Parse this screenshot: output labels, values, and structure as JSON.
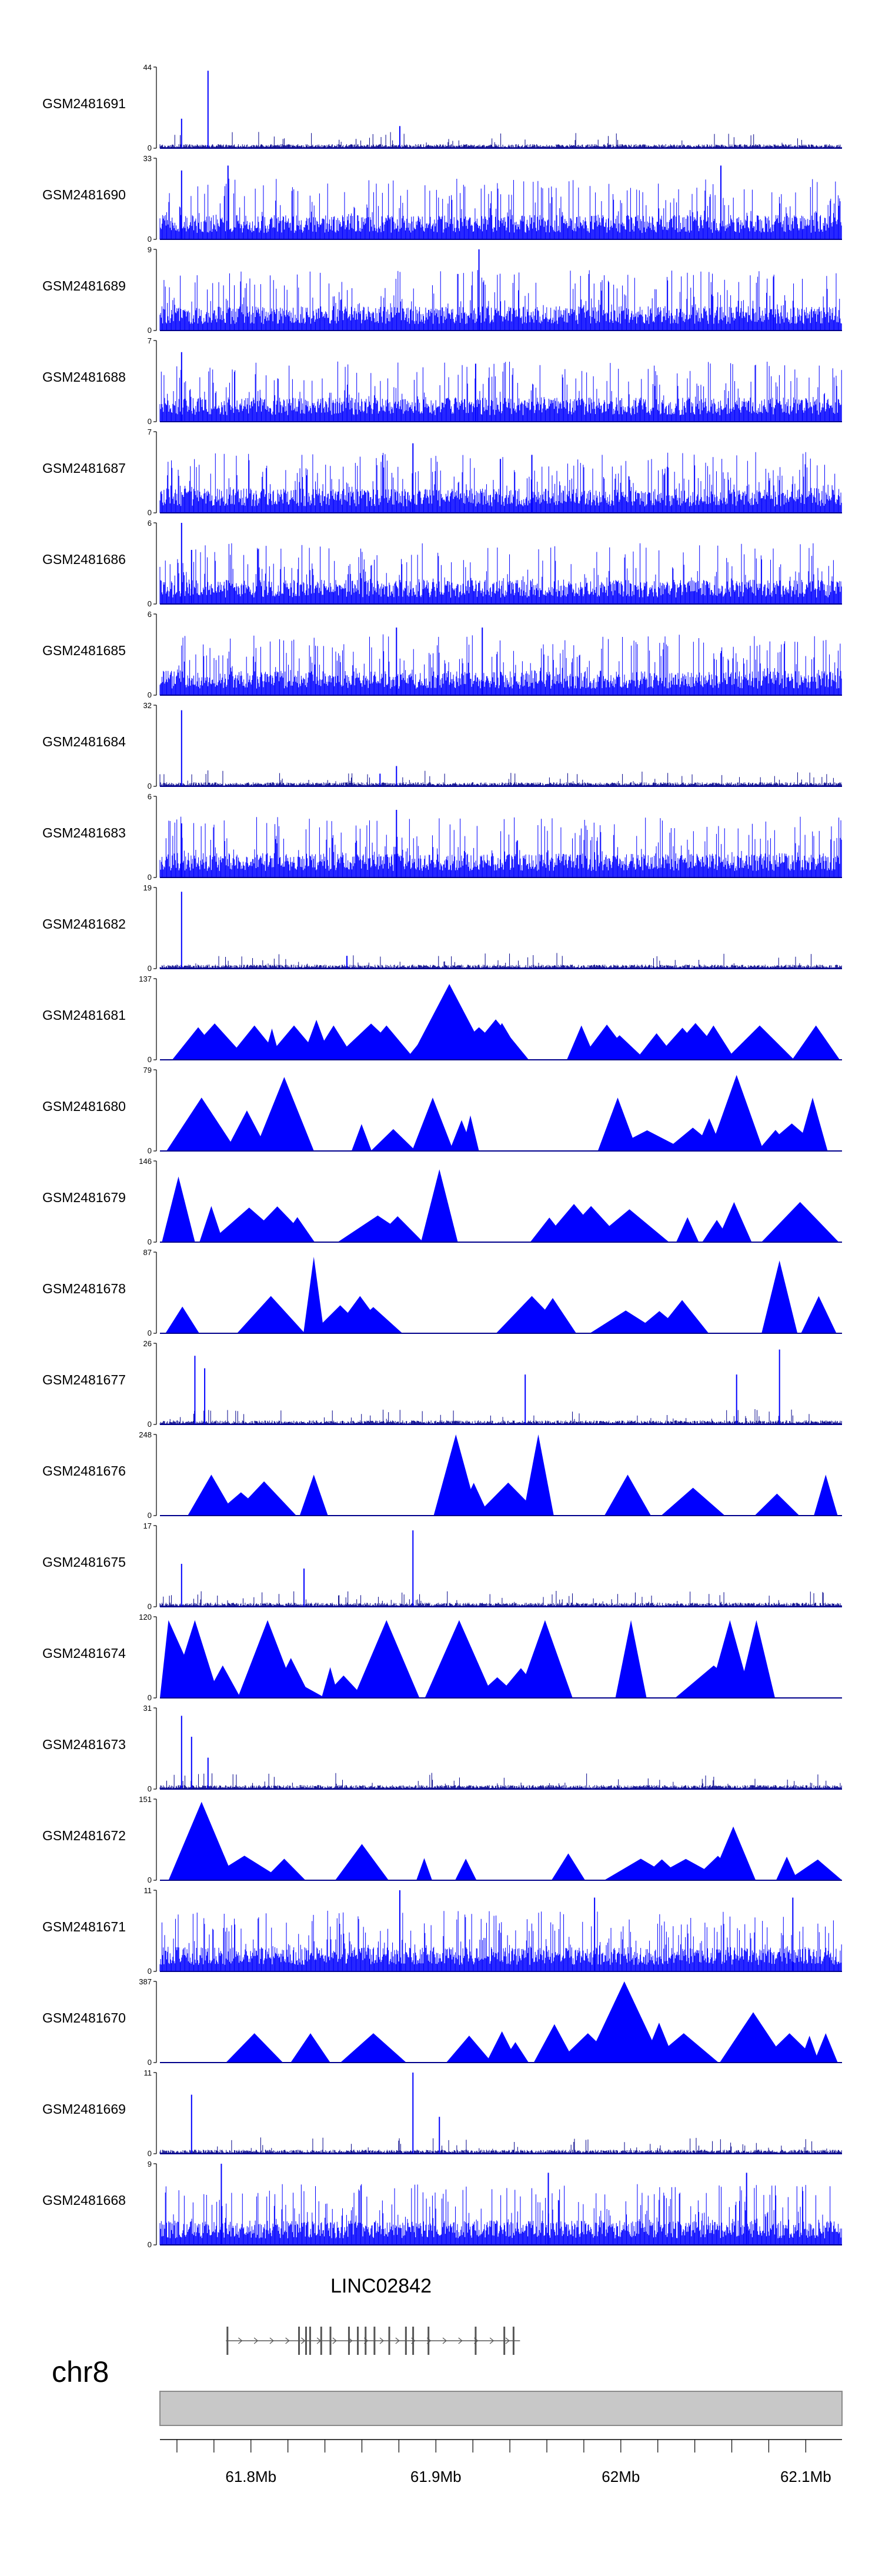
{
  "chart_data": {
    "type": "area",
    "title": "",
    "xlabel": "",
    "ylabel": "",
    "xlim": [
      61.7508,
      62.1196
    ],
    "x_unit": "Mb",
    "tracks": [
      {
        "name": "GSM2481691",
        "ymax": 44,
        "pattern": "spiky",
        "peaks": [
          [
            61.7625,
            16
          ],
          [
            61.7768,
            42
          ],
          [
            61.8805,
            12
          ]
        ]
      },
      {
        "name": "GSM2481690",
        "ymax": 33,
        "pattern": "dense",
        "peaks": [
          [
            61.7625,
            28
          ],
          [
            61.7876,
            30
          ],
          [
            62.0541,
            30
          ]
        ]
      },
      {
        "name": "GSM2481689",
        "ymax": 9,
        "pattern": "dense",
        "peaks": [
          [
            61.9233,
            9
          ],
          [
            62.0826,
            6
          ]
        ]
      },
      {
        "name": "GSM2481688",
        "ymax": 7,
        "pattern": "dense",
        "peaks": [
          [
            61.7625,
            6
          ],
          [
            61.9215,
            5
          ]
        ]
      },
      {
        "name": "GSM2481687",
        "ymax": 7,
        "pattern": "dense",
        "peaks": [
          [
            61.8876,
            6
          ],
          [
            61.9519,
            5
          ]
        ]
      },
      {
        "name": "GSM2481686",
        "ymax": 6,
        "pattern": "dense",
        "peaks": [
          [
            61.7625,
            6
          ],
          [
            61.7679,
            4
          ]
        ]
      },
      {
        "name": "GSM2481685",
        "ymax": 6,
        "pattern": "dense",
        "peaks": [
          [
            61.8787,
            5
          ],
          [
            61.9251,
            5
          ]
        ]
      },
      {
        "name": "GSM2481684",
        "ymax": 32,
        "pattern": "spiky",
        "peaks": [
          [
            61.7625,
            30
          ],
          [
            61.8787,
            8
          ],
          [
            61.8698,
            5
          ]
        ]
      },
      {
        "name": "GSM2481683",
        "ymax": 6,
        "pattern": "dense",
        "peaks": [
          [
            61.8787,
            5
          ],
          [
            61.7625,
            4
          ]
        ]
      },
      {
        "name": "GSM2481682",
        "ymax": 19,
        "pattern": "spiky",
        "peaks": [
          [
            61.7625,
            18
          ],
          [
            61.8519,
            3
          ]
        ]
      },
      {
        "name": "GSM2481681",
        "ymax": 137,
        "pattern": "tri",
        "peaks": [
          [
            61.7715,
            55
          ],
          [
            61.8019,
            58
          ],
          [
            61.8233,
            58
          ],
          [
            61.8447,
            58
          ],
          [
            61.8733,
            58
          ],
          [
            61.9001,
            64
          ],
          [
            61.9073,
            128
          ],
          [
            61.9233,
            55
          ],
          [
            61.9787,
            58
          ],
          [
            62.0501,
            58
          ],
          [
            62.0751,
            58
          ],
          [
            62.1055,
            58
          ]
        ]
      },
      {
        "name": "GSM2481680",
        "ymax": 79,
        "pattern": "tri",
        "peaks": [
          [
            61.7733,
            52
          ],
          [
            61.818,
            72
          ],
          [
            61.8983,
            52
          ],
          [
            61.9983,
            52
          ],
          [
            62.0626,
            74
          ],
          [
            62.1037,
            52
          ]
        ]
      },
      {
        "name": "GSM2481679",
        "ymax": 146,
        "pattern": "tri",
        "peaks": [
          [
            61.7608,
            118
          ],
          [
            61.7786,
            65
          ],
          [
            61.9019,
            131
          ],
          [
            61.8251,
            45
          ],
          [
            61.9839,
            65
          ],
          [
            62.0519,
            40
          ]
        ]
      },
      {
        "name": "GSM2481678",
        "ymax": 87,
        "pattern": "tri",
        "peaks": [
          [
            61.834,
            82
          ],
          [
            62.0858,
            78
          ],
          [
            61.8108,
            40
          ],
          [
            61.859,
            40
          ],
          [
            61.9519,
            40
          ]
        ]
      },
      {
        "name": "GSM2481677",
        "ymax": 26,
        "pattern": "spiky",
        "peaks": [
          [
            61.7697,
            22
          ],
          [
            61.775,
            18
          ],
          [
            61.9483,
            16
          ],
          [
            62.0858,
            24
          ],
          [
            62.0626,
            16
          ]
        ]
      },
      {
        "name": "GSM2481676",
        "ymax": 248,
        "pattern": "tri",
        "peaks": [
          [
            61.7786,
            125
          ],
          [
            61.834,
            125
          ],
          [
            61.9108,
            248
          ],
          [
            61.9554,
            248
          ],
          [
            62.0037,
            125
          ],
          [
            62.1108,
            125
          ]
        ]
      },
      {
        "name": "GSM2481675",
        "ymax": 17,
        "pattern": "spiky",
        "peaks": [
          [
            61.8876,
            16
          ],
          [
            61.7625,
            9
          ],
          [
            61.8287,
            8
          ]
        ]
      },
      {
        "name": "GSM2481674",
        "ymax": 120,
        "pattern": "tri",
        "peaks": [
          [
            61.7554,
            115
          ],
          [
            61.7697,
            115
          ],
          [
            61.809,
            115
          ],
          [
            61.8733,
            115
          ],
          [
            61.9126,
            115
          ],
          [
            61.959,
            115
          ],
          [
            62.0055,
            115
          ],
          [
            62.059,
            115
          ],
          [
            62.0733,
            115
          ]
        ]
      },
      {
        "name": "GSM2481673",
        "ymax": 31,
        "pattern": "spiky",
        "peaks": [
          [
            61.7625,
            28
          ],
          [
            61.7679,
            20
          ],
          [
            61.7768,
            12
          ]
        ]
      },
      {
        "name": "GSM2481672",
        "ymax": 151,
        "pattern": "tri",
        "peaks": [
          [
            61.7733,
            146
          ],
          [
            62.0608,
            100
          ],
          [
            61.818,
            40
          ],
          [
            61.9162,
            40
          ],
          [
            62.0108,
            40
          ]
        ]
      },
      {
        "name": "GSM2481671",
        "ymax": 11,
        "pattern": "dense",
        "peaks": [
          [
            61.8805,
            11
          ],
          [
            61.9858,
            10
          ],
          [
            62.093,
            10
          ]
        ]
      },
      {
        "name": "GSM2481670",
        "ymax": 387,
        "pattern": "tri",
        "peaks": [
          [
            61.8019,
            140
          ],
          [
            61.8322,
            140
          ],
          [
            61.8662,
            140
          ],
          [
            61.9822,
            140
          ],
          [
            62.0019,
            387
          ],
          [
            62.034,
            140
          ],
          [
            62.0716,
            240
          ],
          [
            62.0912,
            140
          ],
          [
            62.1108,
            140
          ]
        ]
      },
      {
        "name": "GSM2481669",
        "ymax": 11,
        "pattern": "spiky",
        "peaks": [
          [
            61.7679,
            8
          ],
          [
            61.8876,
            11
          ],
          [
            61.9019,
            5
          ]
        ]
      },
      {
        "name": "GSM2481668",
        "ymax": 9,
        "pattern": "dense",
        "peaks": [
          [
            61.784,
            9
          ],
          [
            61.9608,
            8
          ],
          [
            62.068,
            8
          ]
        ]
      }
    ],
    "gene": {
      "name": "LINC02842",
      "strand": "+",
      "start": 61.7865,
      "end": 61.9455,
      "exons": [
        61.7873,
        61.826,
        61.8298,
        61.832,
        61.838,
        61.843,
        61.853,
        61.8578,
        61.862,
        61.8668,
        61.8748,
        61.8838,
        61.8877,
        61.896,
        61.9215,
        61.937,
        61.942
      ]
    },
    "chromosome": "chr8",
    "x_ticks": [
      {
        "value": 61.8,
        "label": "61.8Mb"
      },
      {
        "value": 61.9,
        "label": "61.9Mb"
      },
      {
        "value": 62.0,
        "label": "62Mb"
      },
      {
        "value": 62.1,
        "label": "62.1Mb"
      }
    ],
    "x_minor_step": 0.02,
    "colors": {
      "signal": "#0000ff",
      "signal_dark": "#00008b",
      "axis": "#000000",
      "gene": "#555555",
      "ideogram_fill": "#c8c8c8",
      "ideogram_stroke": "#8a8a8a"
    }
  }
}
